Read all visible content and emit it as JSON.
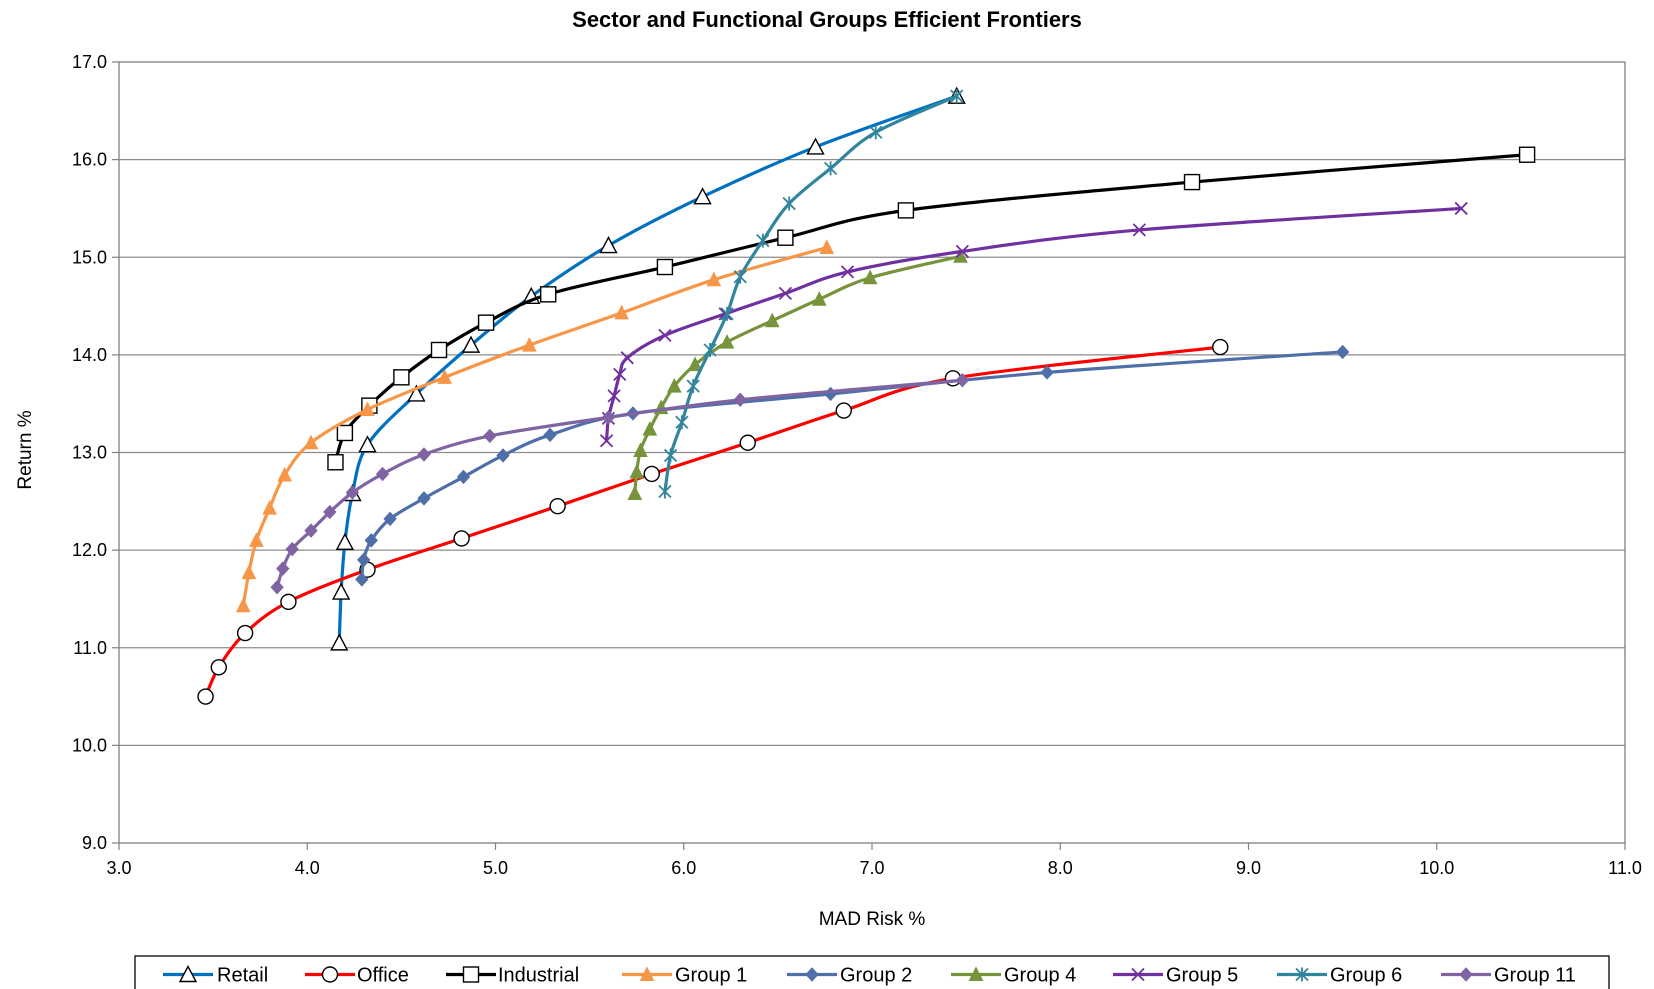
{
  "chart_data": {
    "type": "line",
    "title": "Sector and Functional Groups Efficient Frontiers",
    "xlabel": "MAD Risk %",
    "ylabel": "Return %",
    "xlim": [
      3.0,
      11.0
    ],
    "ylim": [
      9.0,
      17.0
    ],
    "xticks": [
      "3.0",
      "4.0",
      "5.0",
      "6.0",
      "7.0",
      "8.0",
      "9.0",
      "10.0",
      "11.0"
    ],
    "yticks": [
      "9.0",
      "10.0",
      "11.0",
      "12.0",
      "13.0",
      "14.0",
      "15.0",
      "16.0",
      "17.0"
    ],
    "grid": "horizontal",
    "legend_position": "bottom",
    "series": [
      {
        "name": "Retail",
        "color": "#0070c0",
        "marker": "triangle-open",
        "points": [
          [
            4.17,
            11.05
          ],
          [
            4.18,
            11.57
          ],
          [
            4.2,
            12.08
          ],
          [
            4.24,
            12.58
          ],
          [
            4.32,
            13.08
          ],
          [
            4.58,
            13.6
          ],
          [
            4.87,
            14.1
          ],
          [
            5.19,
            14.6
          ],
          [
            5.6,
            15.12
          ],
          [
            6.1,
            15.62
          ],
          [
            6.7,
            16.13
          ],
          [
            7.45,
            16.65
          ]
        ]
      },
      {
        "name": "Office",
        "color": "#ff0000",
        "marker": "circle-open",
        "points": [
          [
            3.46,
            10.5
          ],
          [
            3.53,
            10.8
          ],
          [
            3.67,
            11.15
          ],
          [
            3.9,
            11.47
          ],
          [
            4.32,
            11.8
          ],
          [
            4.82,
            12.12
          ],
          [
            5.33,
            12.45
          ],
          [
            5.83,
            12.78
          ],
          [
            6.34,
            13.1
          ],
          [
            6.85,
            13.43
          ],
          [
            7.43,
            13.76
          ],
          [
            8.85,
            14.08
          ]
        ]
      },
      {
        "name": "Industrial",
        "color": "#000000",
        "marker": "square-open",
        "points": [
          [
            4.15,
            12.9
          ],
          [
            4.2,
            13.2
          ],
          [
            4.33,
            13.48
          ],
          [
            4.5,
            13.77
          ],
          [
            4.7,
            14.05
          ],
          [
            4.95,
            14.33
          ],
          [
            5.28,
            14.62
          ],
          [
            5.9,
            14.9
          ],
          [
            6.54,
            15.2
          ],
          [
            7.18,
            15.48
          ],
          [
            8.7,
            15.77
          ],
          [
            10.48,
            16.05
          ]
        ]
      },
      {
        "name": "Group 1",
        "color": "#f79646",
        "marker": "triangle-filled",
        "points": [
          [
            3.66,
            11.43
          ],
          [
            3.69,
            11.77
          ],
          [
            3.73,
            12.1
          ],
          [
            3.8,
            12.43
          ],
          [
            3.88,
            12.77
          ],
          [
            4.02,
            13.1
          ],
          [
            4.32,
            13.44
          ],
          [
            4.73,
            13.77
          ],
          [
            5.18,
            14.1
          ],
          [
            5.67,
            14.43
          ],
          [
            6.16,
            14.77
          ],
          [
            6.76,
            15.1
          ]
        ]
      },
      {
        "name": "Group 2",
        "color": "#4f6fa8",
        "marker": "diamond-filled",
        "points": [
          [
            4.29,
            11.7
          ],
          [
            4.3,
            11.9
          ],
          [
            4.34,
            12.1
          ],
          [
            4.44,
            12.32
          ],
          [
            4.62,
            12.53
          ],
          [
            4.83,
            12.75
          ],
          [
            5.04,
            12.97
          ],
          [
            5.29,
            13.18
          ],
          [
            5.73,
            13.4
          ],
          [
            6.78,
            13.6
          ],
          [
            7.93,
            13.82
          ],
          [
            9.5,
            14.03
          ]
        ]
      },
      {
        "name": "Group 4",
        "color": "#77933c",
        "marker": "triangle-filled",
        "points": [
          [
            5.74,
            12.58
          ],
          [
            5.75,
            12.8
          ],
          [
            5.77,
            13.02
          ],
          [
            5.82,
            13.24
          ],
          [
            5.88,
            13.46
          ],
          [
            5.95,
            13.68
          ],
          [
            6.06,
            13.9
          ],
          [
            6.23,
            14.13
          ],
          [
            6.47,
            14.35
          ],
          [
            6.72,
            14.57
          ],
          [
            6.99,
            14.79
          ],
          [
            7.47,
            15.01
          ]
        ]
      },
      {
        "name": "Group 5",
        "color": "#7030a0",
        "marker": "x",
        "points": [
          [
            5.59,
            13.12
          ],
          [
            5.6,
            13.35
          ],
          [
            5.63,
            13.58
          ],
          [
            5.66,
            13.8
          ],
          [
            5.7,
            13.97
          ],
          [
            5.9,
            14.2
          ],
          [
            6.22,
            14.42
          ],
          [
            6.54,
            14.63
          ],
          [
            6.87,
            14.85
          ],
          [
            7.48,
            15.06
          ],
          [
            8.42,
            15.28
          ],
          [
            10.13,
            15.5
          ]
        ]
      },
      {
        "name": "Group 6",
        "color": "#31859c",
        "marker": "star",
        "points": [
          [
            5.9,
            12.6
          ],
          [
            5.93,
            12.97
          ],
          [
            5.99,
            13.31
          ],
          [
            6.05,
            13.68
          ],
          [
            6.14,
            14.05
          ],
          [
            6.23,
            14.42
          ],
          [
            6.3,
            14.8
          ],
          [
            6.42,
            15.17
          ],
          [
            6.56,
            15.55
          ],
          [
            6.78,
            15.91
          ],
          [
            7.02,
            16.28
          ],
          [
            7.45,
            16.65
          ]
        ]
      },
      {
        "name": "Group 11",
        "color": "#8064a2",
        "marker": "diamond-filled",
        "points": [
          [
            3.84,
            11.62
          ],
          [
            3.87,
            11.81
          ],
          [
            3.92,
            12.01
          ],
          [
            4.02,
            12.2
          ],
          [
            4.12,
            12.39
          ],
          [
            4.24,
            12.59
          ],
          [
            4.4,
            12.78
          ],
          [
            4.62,
            12.98
          ],
          [
            4.97,
            13.17
          ],
          [
            5.6,
            13.36
          ],
          [
            6.3,
            13.54
          ],
          [
            7.48,
            13.74
          ]
        ]
      }
    ]
  }
}
